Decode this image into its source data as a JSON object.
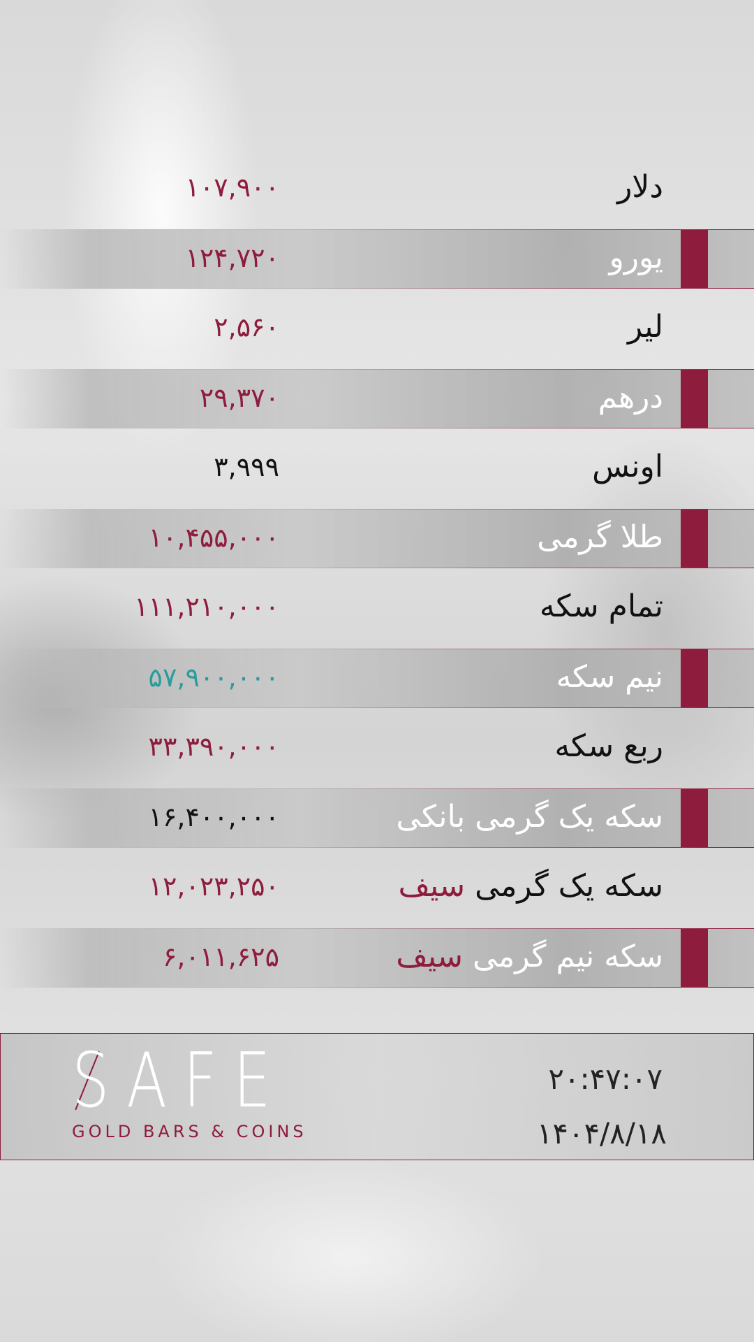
{
  "rates": [
    {
      "label": "دلار",
      "value": "۱۰۷,۹۰۰",
      "value_color": "maroon"
    },
    {
      "label": "یورو",
      "value": "۱۲۴,۷۲۰",
      "value_color": "maroon"
    },
    {
      "label": "لیر",
      "value": "۲,۵۶۰",
      "value_color": "maroon"
    },
    {
      "label": "درهم",
      "value": "۲۹,۳۷۰",
      "value_color": "maroon"
    },
    {
      "label": "اونس",
      "value": "۳,۹۹۹",
      "value_color": "black"
    },
    {
      "label": "طلا گرمی",
      "value": "۱۰,۴۵۵,۰۰۰",
      "value_color": "maroon"
    },
    {
      "label": "تمام سکه",
      "value": "۱۱۱,۲۱۰,۰۰۰",
      "value_color": "maroon"
    },
    {
      "label": "نیم سکه",
      "value": "۵۷,۹۰۰,۰۰۰",
      "value_color": "teal"
    },
    {
      "label": "ربع سکه",
      "value": "۳۳,۳۹۰,۰۰۰",
      "value_color": "maroon"
    },
    {
      "label": "سکه یک گرمی بانکی",
      "value": "۱۶,۴۰۰,۰۰۰",
      "value_color": "black"
    },
    {
      "label": "سکه یک گرمی",
      "label_highlight": "سیف",
      "value": "۱۲,۰۲۳,۲۵۰",
      "value_color": "maroon"
    },
    {
      "label": "سکه نیم گرمی",
      "label_highlight": "سیف",
      "value": "۶,۰۱۱,۶۲۵",
      "value_color": "maroon"
    }
  ],
  "footer": {
    "logo_text": "SAFE",
    "logo_subtitle": "GOLD BARS & COINS",
    "time": "۲۰:۴۷:۰۷",
    "date": "۱۴۰۴/۸/۱۸"
  },
  "colors": {
    "accent": "#8e1c3c",
    "teal": "#2a9d9a",
    "text": "#111111"
  }
}
